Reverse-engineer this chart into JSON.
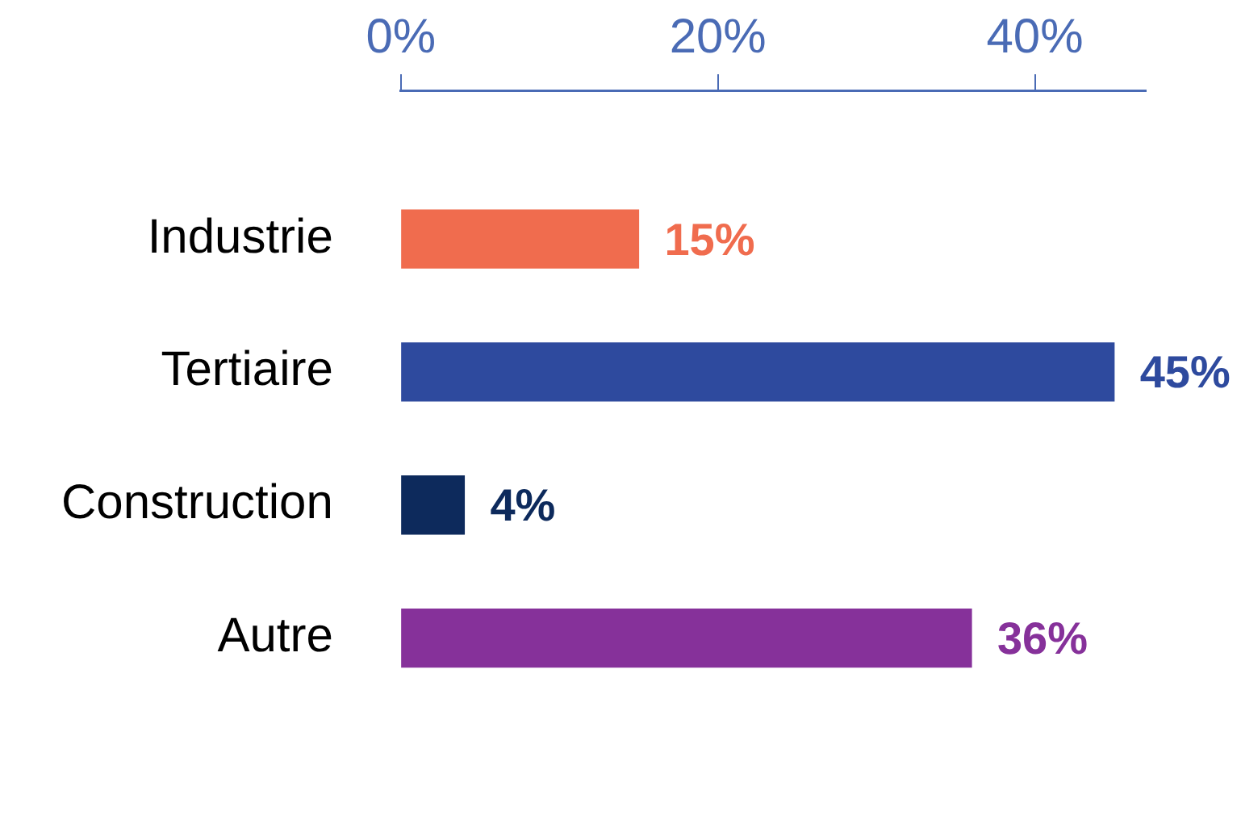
{
  "chart_data": {
    "type": "bar",
    "orientation": "horizontal",
    "categories": [
      "Industrie",
      "Tertiaire",
      "Construction",
      "Autre"
    ],
    "values": [
      15,
      45,
      4,
      36
    ],
    "colors": [
      "#f06c4e",
      "#2e4a9e",
      "#0d2a5c",
      "#86319a"
    ],
    "value_labels": [
      "15%",
      "45%",
      "4%",
      "36%"
    ],
    "xlim": [
      0,
      47
    ],
    "xticks": [
      {
        "value": 0,
        "label": "0%"
      },
      {
        "value": 20,
        "label": "20%"
      },
      {
        "value": 40,
        "label": "40%"
      }
    ],
    "grid": false,
    "legend": false
  }
}
